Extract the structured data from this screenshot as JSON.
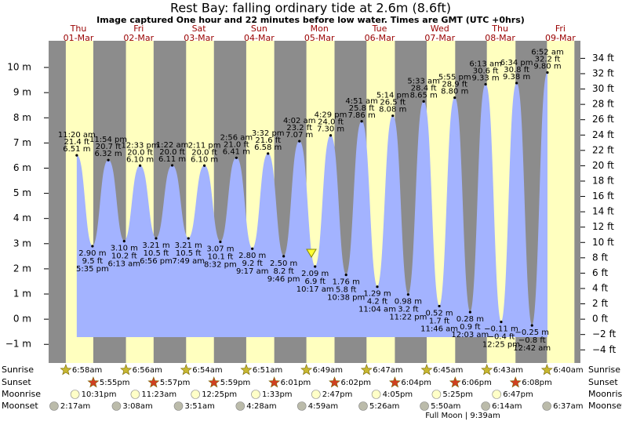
{
  "chart_data": {
    "type": "tide",
    "title": "Rest Bay: falling  ordinary tide at 2.6m (8.6ft)",
    "subtitle": "Image captured One hour and 22 minutes before low water. Times are GMT (UTC +0hrs)",
    "color": "#a3b3ff",
    "night_color": "#8c8c8c",
    "day_color": "#ffffbf",
    "ylim": [
      -1.74,
      11.06
    ],
    "yticks": [
      {
        "value": -1,
        "label": "−1 m"
      },
      {
        "value": 0,
        "label": "0 m"
      },
      {
        "value": 1,
        "label": "1 m"
      },
      {
        "value": 2,
        "label": "2 m"
      },
      {
        "value": 3,
        "label": "3 m"
      },
      {
        "value": 4,
        "label": "4 m"
      },
      {
        "value": 5,
        "label": "5 m"
      },
      {
        "value": 6,
        "label": "6 m"
      },
      {
        "value": 7,
        "label": "7 m"
      },
      {
        "value": 8,
        "label": "8 m"
      },
      {
        "value": 9,
        "label": "9 m"
      },
      {
        "value": 10,
        "label": "10 m"
      }
    ],
    "y2lim": [
      -5.71,
      36.29
    ],
    "y2ticks": [
      {
        "value": -4,
        "label": "−4 ft"
      },
      {
        "value": -2,
        "label": "−2 ft"
      },
      {
        "value": 0,
        "label": "0 ft"
      },
      {
        "value": 2,
        "label": "2 ft"
      },
      {
        "value": 4,
        "label": "4 ft"
      },
      {
        "value": 6,
        "label": "6 ft"
      },
      {
        "value": 8,
        "label": "8 ft"
      },
      {
        "value": 10,
        "label": "10 ft"
      },
      {
        "value": 12,
        "label": "12 ft"
      },
      {
        "value": 14,
        "label": "14 ft"
      },
      {
        "value": 16,
        "label": "16 ft"
      },
      {
        "value": 18,
        "label": "18 ft"
      },
      {
        "value": 20,
        "label": "20 ft"
      },
      {
        "value": 22,
        "label": "22 ft"
      },
      {
        "value": 24,
        "label": "24 ft"
      },
      {
        "value": 26,
        "label": "26 ft"
      },
      {
        "value": 28,
        "label": "28 ft"
      },
      {
        "value": 30,
        "label": "30 ft"
      },
      {
        "value": 32,
        "label": "32 ft"
      },
      {
        "value": 34,
        "label": "34 ft"
      }
    ],
    "row_labels": {
      "sunrise": "Sunrise",
      "sunset": "Sunset",
      "moonrise": "Moonrise",
      "moonset": "Moonset"
    },
    "note": "Full Moon | 9:39am",
    "days": [
      {
        "weekday": "Thu",
        "date": "01-Mar",
        "sunrise": "6:58am",
        "sunset": "5:55pm",
        "moonrise": "10:31pm",
        "moonset": "2:17am",
        "tides": [
          {
            "time": "11:20 am",
            "m": 6.51,
            "m_label": "6.51 m",
            "ft": 21.4,
            "ft_label": "21.4 ft"
          },
          {
            "time": "5:35 pm",
            "m": 2.9,
            "m_label": "2.90 m",
            "ft": 9.5,
            "ft_label": "9.5 ft"
          },
          {
            "time": "11:54 pm",
            "m": 6.32,
            "m_label": "6.32 m",
            "ft": 20.7,
            "ft_label": "20.7 ft"
          }
        ]
      },
      {
        "weekday": "Fri",
        "date": "02-Mar",
        "sunrise": "6:56am",
        "sunset": "5:57pm",
        "moonrise": "11:23am",
        "moonset": "3:08am",
        "tides": [
          {
            "time": "6:13 am",
            "m": 3.1,
            "m_label": "3.10 m",
            "ft": 10.2,
            "ft_label": "10.2 ft"
          },
          {
            "time": "12:33 pm",
            "m": 6.1,
            "m_label": "6.10 m",
            "ft": 20.0,
            "ft_label": "20.0 ft"
          },
          {
            "time": "6:56 pm",
            "m": 3.21,
            "m_label": "3.21 m",
            "ft": 10.5,
            "ft_label": "10.5 ft"
          }
        ]
      },
      {
        "weekday": "Sat",
        "date": "03-Mar",
        "sunrise": "6:54am",
        "sunset": "5:59pm",
        "moonrise": "12:25pm",
        "moonset": "3:51am",
        "tides": [
          {
            "time": "1:22 am",
            "m": 6.11,
            "m_label": "6.11 m",
            "ft": 20.0,
            "ft_label": "20.0 ft"
          },
          {
            "time": "7:49 am",
            "m": 3.21,
            "m_label": "3.21 m",
            "ft": 10.5,
            "ft_label": "10.5 ft"
          },
          {
            "time": "2:11 pm",
            "m": 6.1,
            "m_label": "6.10 m",
            "ft": 20.0,
            "ft_label": "20.0 ft"
          },
          {
            "time": "8:32 pm",
            "m": 3.07,
            "m_label": "3.07 m",
            "ft": 10.1,
            "ft_label": "10.1 ft"
          }
        ]
      },
      {
        "weekday": "Sun",
        "date": "04-Mar",
        "sunrise": "6:51am",
        "sunset": "6:01pm",
        "moonrise": "1:33pm",
        "moonset": "4:28am",
        "tides": [
          {
            "time": "2:56 am",
            "m": 6.41,
            "m_label": "6.41 m",
            "ft": 21.0,
            "ft_label": "21.0 ft"
          },
          {
            "time": "9:17 am",
            "m": 2.8,
            "m_label": "2.80 m",
            "ft": 9.2,
            "ft_label": "9.2 ft"
          },
          {
            "time": "3:32 pm",
            "m": 6.58,
            "m_label": "6.58 m",
            "ft": 21.6,
            "ft_label": "21.6 ft"
          },
          {
            "time": "9:46 pm",
            "m": 2.5,
            "m_label": "2.50 m",
            "ft": 8.2,
            "ft_label": "8.2 ft"
          }
        ]
      },
      {
        "weekday": "Mon",
        "date": "05-Mar",
        "sunrise": "6:49am",
        "sunset": "6:02pm",
        "moonrise": "2:47pm",
        "moonset": "4:59am",
        "tides": [
          {
            "time": "4:02 am",
            "m": 7.07,
            "m_label": "7.07 m",
            "ft": 23.2,
            "ft_label": "23.2 ft"
          },
          {
            "time": "10:17 am",
            "m": 2.09,
            "m_label": "2.09 m",
            "ft": 6.9,
            "ft_label": "6.9 ft"
          },
          {
            "time": "4:29 pm",
            "m": 7.3,
            "m_label": "7.30 m",
            "ft": 24.0,
            "ft_label": "24.0 ft"
          },
          {
            "time": "10:38 pm",
            "m": 1.76,
            "m_label": "1.76 m",
            "ft": 5.8,
            "ft_label": "5.8 ft"
          }
        ]
      },
      {
        "weekday": "Tue",
        "date": "06-Mar",
        "sunrise": "6:47am",
        "sunset": "6:04pm",
        "moonrise": "4:05pm",
        "moonset": "5:26am",
        "tides": [
          {
            "time": "4:51 am",
            "m": 7.86,
            "m_label": "7.86 m",
            "ft": 25.8,
            "ft_label": "25.8 ft"
          },
          {
            "time": "11:04 am",
            "m": 1.29,
            "m_label": "1.29 m",
            "ft": 4.2,
            "ft_label": "4.2 ft"
          },
          {
            "time": "5:14 pm",
            "m": 8.08,
            "m_label": "8.08 m",
            "ft": 26.5,
            "ft_label": "26.5 ft"
          },
          {
            "time": "11:22 pm",
            "m": 0.98,
            "m_label": "0.98 m",
            "ft": 3.2,
            "ft_label": "3.2 ft"
          }
        ]
      },
      {
        "weekday": "Wed",
        "date": "07-Mar",
        "sunrise": "6:45am",
        "sunset": "6:06pm",
        "moonrise": "5:25pm",
        "moonset": "5:50am",
        "tides": [
          {
            "time": "5:33 am",
            "m": 8.65,
            "m_label": "8.65 m",
            "ft": 28.4,
            "ft_label": "28.4 ft"
          },
          {
            "time": "11:46 am",
            "m": 0.52,
            "m_label": "0.52 m",
            "ft": 1.7,
            "ft_label": "1.7 ft"
          },
          {
            "time": "5:55 pm",
            "m": 8.8,
            "m_label": "8.80 m",
            "ft": 28.9,
            "ft_label": "28.9 ft"
          }
        ]
      },
      {
        "weekday": "Thu",
        "date": "08-Mar",
        "sunrise": "6:43am",
        "sunset": "6:08pm",
        "moonrise": "6:47pm",
        "moonset": "6:14am",
        "tides": [
          {
            "time": "12:03 am",
            "m": 0.28,
            "m_label": "0.28 m",
            "ft": 0.9,
            "ft_label": "0.9 ft"
          },
          {
            "time": "6:13 am",
            "m": 9.33,
            "m_label": "9.33 m",
            "ft": 30.6,
            "ft_label": "30.6 ft"
          },
          {
            "time": "12:25 pm",
            "m": -0.11,
            "m_label": "−0.11 m",
            "ft": -0.4,
            "ft_label": "−0.4 ft"
          },
          {
            "time": "6:34 pm",
            "m": 9.38,
            "m_label": "9.38 m",
            "ft": 30.8,
            "ft_label": "30.8 ft"
          }
        ]
      },
      {
        "weekday": "Fri",
        "date": "09-Mar",
        "sunrise": "6:40am",
        "moonset": "6:37am",
        "tides": [
          {
            "time": "12:42 am",
            "m": -0.25,
            "m_label": "−0.25 m",
            "ft": -0.8,
            "ft_label": "−0.8 ft"
          },
          {
            "time": "6:52 am",
            "m": 9.8,
            "m_label": "9.80 m",
            "ft": 32.2,
            "ft_label": "32.2 ft"
          }
        ]
      }
    ]
  }
}
